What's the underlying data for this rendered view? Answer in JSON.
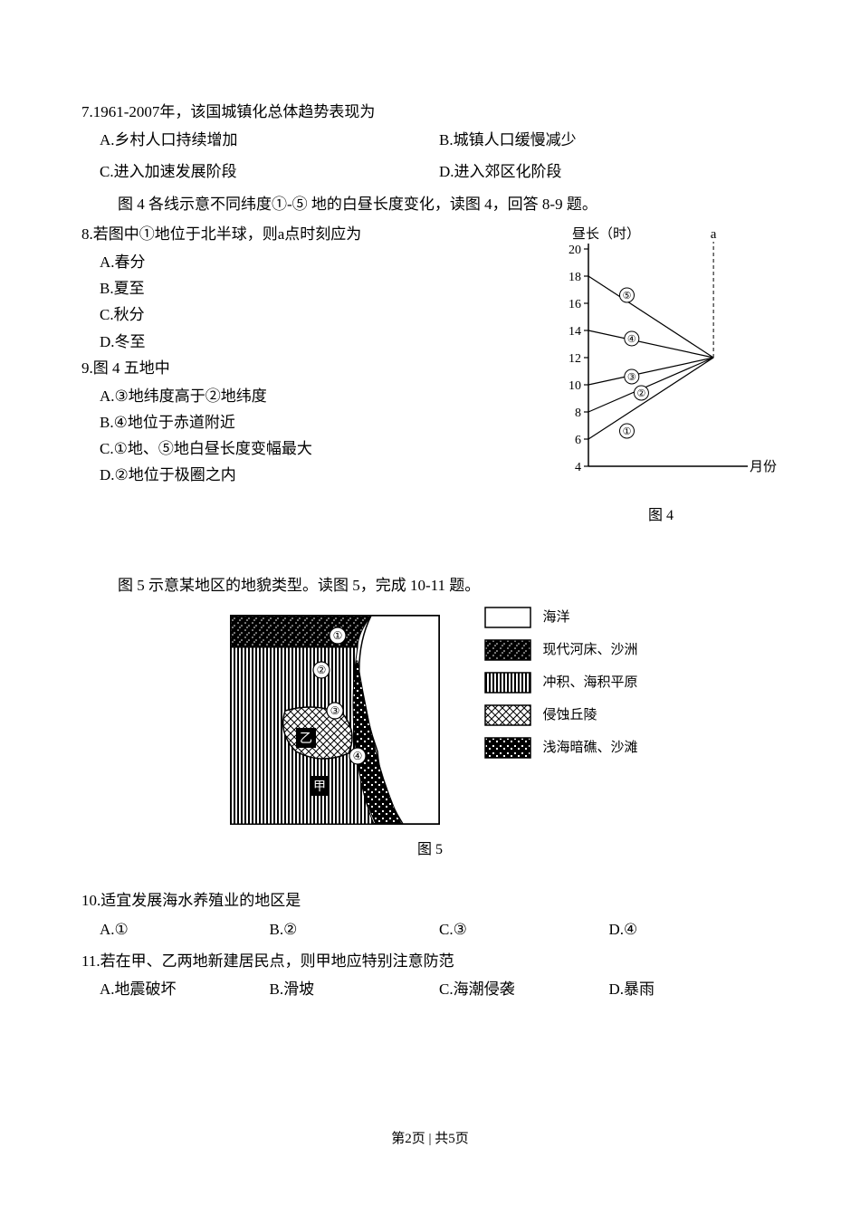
{
  "q7": {
    "stem": "7.1961-2007年，该国城镇化总体趋势表现为",
    "A": "A.乡村人口持续增加",
    "B": "B.城镇人口缓慢减少",
    "C": "C.进入加速发展阶段",
    "D": "D.进入郊区化阶段"
  },
  "intro4": "图 4 各线示意不同纬度①-⑤ 地的白昼长度变化，读图 4，回答 8-9 题。",
  "q8": {
    "stem": "8.若图中①地位于北半球，则a点时刻应为",
    "A": "A.春分",
    "B": "B.夏至",
    "C": "C.秋分",
    "D": "D.冬至"
  },
  "q9": {
    "stem": "9.图 4 五地中",
    "A": "A.③地纬度高于②地纬度",
    "B": "B.④地位于赤道附近",
    "C": "C.①地、⑤地白昼长度变幅最大",
    "D": "D.②地位于极圈之内"
  },
  "chart4": {
    "y_label": "昼长（时）",
    "x_label": "月份",
    "a_label": "a",
    "caption": "图 4",
    "y_tick_labels": [
      "20",
      "18",
      "16",
      "14",
      "12",
      "10",
      "8",
      "6",
      "4"
    ],
    "y_tick_values": [
      20,
      18,
      16,
      14,
      12,
      10,
      8,
      6,
      4
    ],
    "ylim": [
      4,
      20
    ],
    "x_range": [
      0,
      160
    ],
    "converge_x": 130,
    "a_x": 130,
    "series": [
      {
        "id": "①",
        "y_start": 6,
        "y_end": 12,
        "circle_x": 40,
        "circle_y": 6.6
      },
      {
        "id": "②",
        "y_start": 8,
        "y_end": 12,
        "circle_x": 55,
        "circle_y": 9.4
      },
      {
        "id": "③",
        "y_start": 10,
        "y_end": 12,
        "circle_x": 45,
        "circle_y": 10.6
      },
      {
        "id": "④",
        "y_start": 14,
        "y_end": 12,
        "circle_x": 45,
        "circle_y": 13.4
      },
      {
        "id": "⑤",
        "y_start": 18,
        "y_end": 12,
        "circle_x": 40,
        "circle_y": 16.6
      }
    ],
    "axis_color": "#000000",
    "line_color": "#000000",
    "background_color": "#ffffff",
    "line_width": 1.2,
    "tick_len": 5,
    "label_fontsize": 14
  },
  "intro5": "图 5 示意某地区的地貌类型。读图 5，完成 10-11 题。",
  "map5": {
    "caption": "图 5",
    "labels": {
      "r1": "①",
      "r2": "②",
      "r3": "③",
      "r4": "④",
      "jia": "甲",
      "yi": "乙"
    },
    "legend": [
      {
        "label": "海洋",
        "fill": "ocean"
      },
      {
        "label": "现代河床、沙洲",
        "fill": "riverbed"
      },
      {
        "label": "冲积、海积平原",
        "fill": "plain"
      },
      {
        "label": "侵蚀丘陵",
        "fill": "hills"
      },
      {
        "label": "浅海暗礁、沙滩",
        "fill": "reef"
      }
    ],
    "colors": {
      "border": "#000000",
      "text_on_dark": "#ffffff",
      "text_on_light": "#000000"
    }
  },
  "q10": {
    "stem": "10.适宜发展海水养殖业的地区是",
    "A": "A.①",
    "B": "B.②",
    "C": "C.③",
    "D": "D.④"
  },
  "q11": {
    "stem": "11.若在甲、乙两地新建居民点，则甲地应特别注意防范",
    "A": "A.地震破坏",
    "B": "B.滑坡",
    "C": "C.海潮侵袭",
    "D": "D.暴雨"
  },
  "footer": "第2页 | 共5页"
}
